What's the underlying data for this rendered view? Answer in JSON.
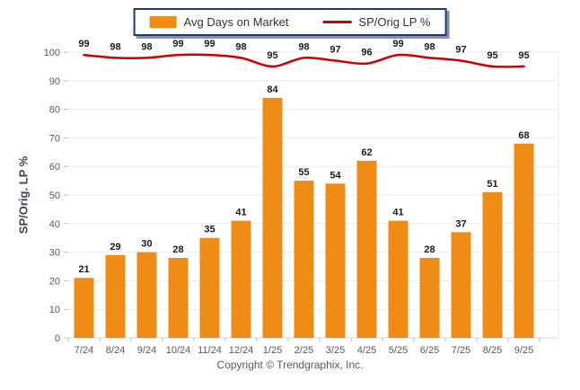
{
  "chart_data": {
    "type": "bar+line",
    "categories": [
      "7/24",
      "8/24",
      "9/24",
      "10/24",
      "11/24",
      "12/24",
      "1/25",
      "2/25",
      "3/25",
      "4/25",
      "5/25",
      "6/25",
      "7/25",
      "8/25",
      "9/25"
    ],
    "series": [
      {
        "name": "Avg Days on Market",
        "type": "bar",
        "color": "#ef8c15",
        "values": [
          21,
          29,
          30,
          28,
          35,
          41,
          84,
          55,
          54,
          62,
          41,
          28,
          37,
          51,
          68
        ]
      },
      {
        "name": "SP/Orig LP %",
        "type": "line",
        "color": "#cc0000",
        "values": [
          99,
          98,
          98,
          99,
          99,
          98,
          95,
          98,
          97,
          96,
          99,
          98,
          97,
          95,
          95
        ]
      }
    ],
    "title": "",
    "xlabel": "",
    "ylabel": "SP/Orig. LP %",
    "ylim": [
      0,
      100
    ],
    "yticks": [
      0,
      10,
      20,
      30,
      40,
      50,
      60,
      70,
      80,
      90,
      100
    ],
    "grid": "horizontal",
    "legend_position": "top-center",
    "data_labels": true
  },
  "colors": {
    "bar": "#ef8c15",
    "line": "#cc0000",
    "grid": "#ececec",
    "axis_line": "#d5d5d5",
    "tick": "#bfbfbf",
    "axis_text": "#595959",
    "data_label_text": "#1a1a1a",
    "legend_border": "#1f3a6e",
    "ylabel_text": "#3f4055"
  },
  "footer": {
    "copyright": "Copyright © Trendgraphix, Inc."
  }
}
